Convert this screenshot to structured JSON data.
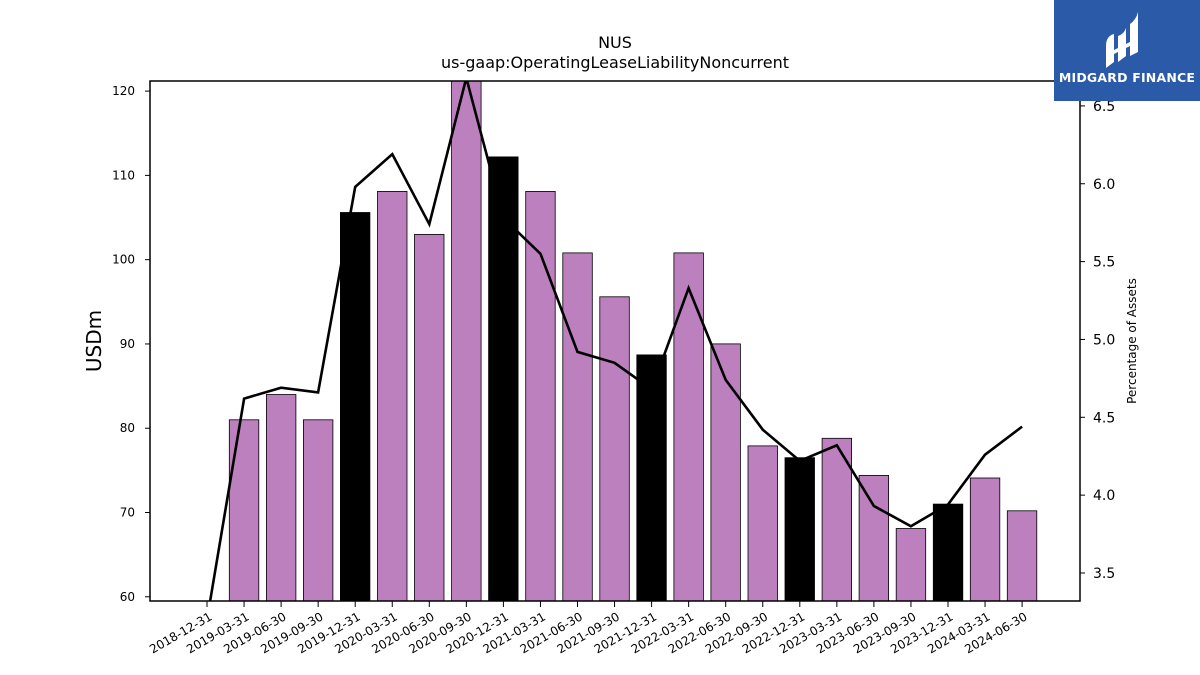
{
  "chart_data": {
    "type": "bar",
    "title": "NUS",
    "subtitle": "us-gaap:OperatingLeaseLiabilityNoncurrent",
    "ylabel": "USDm",
    "y2label": "Percentage of Assets",
    "ylim": [
      59.5,
      121.2
    ],
    "y2lim": [
      3.32,
      6.66
    ],
    "yticks": [
      60,
      70,
      80,
      90,
      100,
      110,
      120
    ],
    "y2ticks": [
      3.5,
      4.0,
      4.5,
      5.0,
      5.5,
      6.0,
      6.5
    ],
    "categories": [
      "2018-12-31",
      "2019-03-31",
      "2019-06-30",
      "2019-09-30",
      "2019-12-31",
      "2020-03-31",
      "2020-06-30",
      "2020-09-30",
      "2020-12-31",
      "2021-03-31",
      "2021-06-30",
      "2021-09-30",
      "2021-12-31",
      "2022-03-31",
      "2022-06-30",
      "2022-09-30",
      "2022-12-31",
      "2023-03-31",
      "2023-06-30",
      "2023-09-30",
      "2023-12-31",
      "2024-03-31",
      "2024-06-30"
    ],
    "series": [
      {
        "type": "bar",
        "values": [
          null,
          81.0,
          84.0,
          81.0,
          105.6,
          108.1,
          103.0,
          121.3,
          112.2,
          108.1,
          100.8,
          95.6,
          88.7,
          100.8,
          90.0,
          77.9,
          76.5,
          78.8,
          74.4,
          68.1,
          71.0,
          74.1,
          70.2
        ],
        "year_end_flags": [
          false,
          false,
          false,
          false,
          true,
          false,
          false,
          false,
          true,
          false,
          false,
          false,
          true,
          false,
          false,
          false,
          true,
          false,
          false,
          false,
          true,
          false,
          false
        ]
      },
      {
        "type": "line",
        "axis": "right",
        "values": [
          3.2,
          4.62,
          4.69,
          4.66,
          5.98,
          6.19,
          5.74,
          6.68,
          5.78,
          5.55,
          4.92,
          4.85,
          4.68,
          5.33,
          4.74,
          4.42,
          4.22,
          4.32,
          3.93,
          3.8,
          3.94,
          4.26,
          4.44
        ]
      }
    ],
    "colors": {
      "bar": "#bb80bd",
      "bar_year_end": "#000000",
      "line": "#000000"
    },
    "grid": false
  },
  "logo": {
    "text": "MIDGARD FINANCE",
    "icon": "midgard-logo-icon"
  }
}
